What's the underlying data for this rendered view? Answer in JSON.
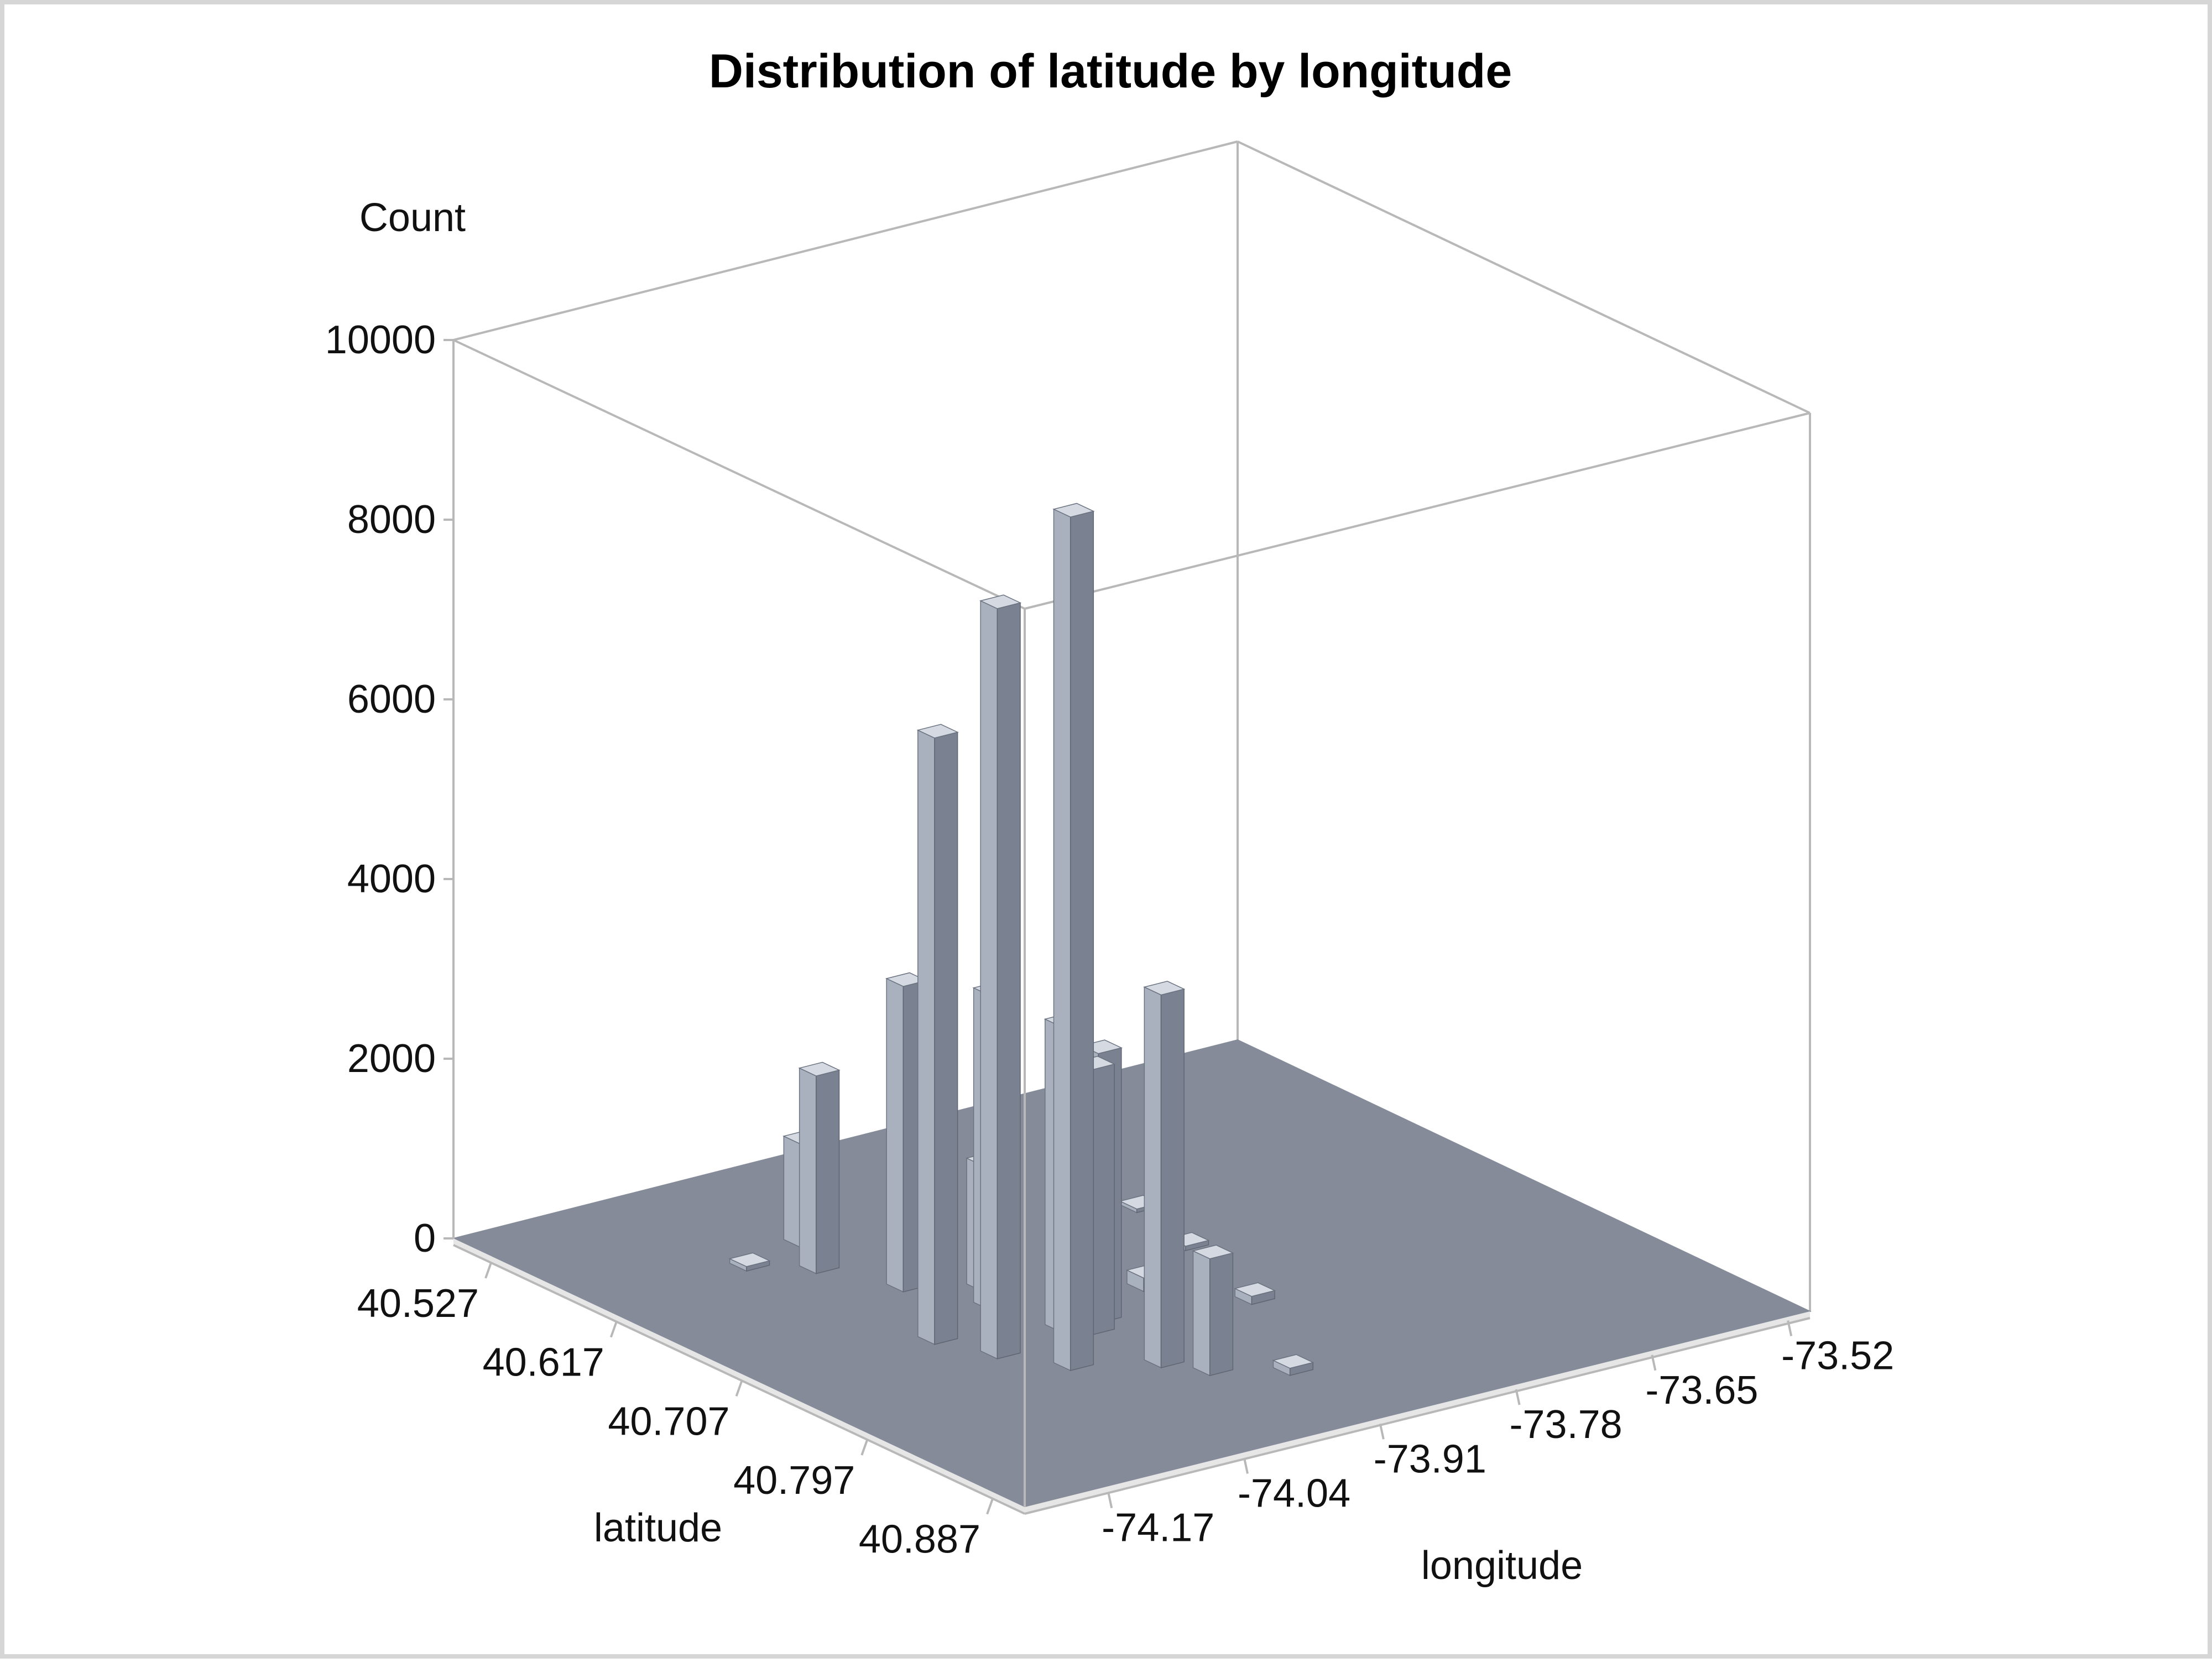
{
  "chart_data": {
    "type": "bar",
    "subtype": "3d-histogram",
    "title": "Distribution of latitude by longitude",
    "zlabel": "Count",
    "xlabel": "longitude",
    "ylabel": "latitude",
    "zlim": [
      0,
      10000
    ],
    "z_ticks": [
      "0",
      "2000",
      "4000",
      "6000",
      "8000",
      "10000"
    ],
    "latitude_ticks": [
      "40.527",
      "40.617",
      "40.707",
      "40.797",
      "40.887"
    ],
    "longitude_ticks": [
      "-74.17",
      "-74.04",
      "-73.91",
      "-73.78",
      "-73.65",
      "-73.52"
    ],
    "latitude_range": [
      40.5,
      40.91
    ],
    "longitude_range": [
      -74.25,
      -73.5
    ],
    "series": [
      {
        "values": [
          {
            "latitude": 40.59,
            "longitude": -74.035,
            "count": 1150
          },
          {
            "latitude": 40.62,
            "longitude": -74.06,
            "count": 2200
          },
          {
            "latitude": 40.66,
            "longitude": -74.03,
            "count": 3400
          },
          {
            "latitude": 40.72,
            "longitude": -74.08,
            "count": 6750
          },
          {
            "latitude": 40.75,
            "longitude": -74.06,
            "count": 8350
          },
          {
            "latitude": 40.78,
            "longitude": -74.03,
            "count": 9500
          },
          {
            "latitude": 40.7,
            "longitude": -74.0,
            "count": 3500
          },
          {
            "latitude": 40.74,
            "longitude": -73.985,
            "count": 3400
          },
          {
            "latitude": 40.75,
            "longitude": -73.97,
            "count": 2950
          },
          {
            "latitude": 40.74,
            "longitude": -73.95,
            "count": 3000
          },
          {
            "latitude": 40.7,
            "longitude": -73.93,
            "count": 2050
          },
          {
            "latitude": 40.8,
            "longitude": -73.97,
            "count": 4150
          },
          {
            "latitude": 40.82,
            "longitude": -73.95,
            "count": 1300
          },
          {
            "latitude": 40.68,
            "longitude": -73.98,
            "count": 1400
          },
          {
            "latitude": 40.66,
            "longitude": -73.95,
            "count": 350
          },
          {
            "latitude": 40.72,
            "longitude": -73.88,
            "count": 150
          },
          {
            "latitude": 40.65,
            "longitude": -73.85,
            "count": 60
          },
          {
            "latitude": 40.76,
            "longitude": -73.83,
            "count": 90
          },
          {
            "latitude": 40.69,
            "longitude": -73.8,
            "count": 50
          },
          {
            "latitude": 40.84,
            "longitude": -73.9,
            "count": 80
          },
          {
            "latitude": 40.6,
            "longitude": -74.1,
            "count": 50
          },
          {
            "latitude": 40.64,
            "longitude": -73.78,
            "count": 40
          }
        ]
      }
    ],
    "colors": {
      "bar_front": "#a9b0be",
      "bar_side": "#7a8190",
      "bar_top": "#d5dae2",
      "floor": "#858b99",
      "axis": "#b8b8b8",
      "text": "#111111"
    }
  }
}
